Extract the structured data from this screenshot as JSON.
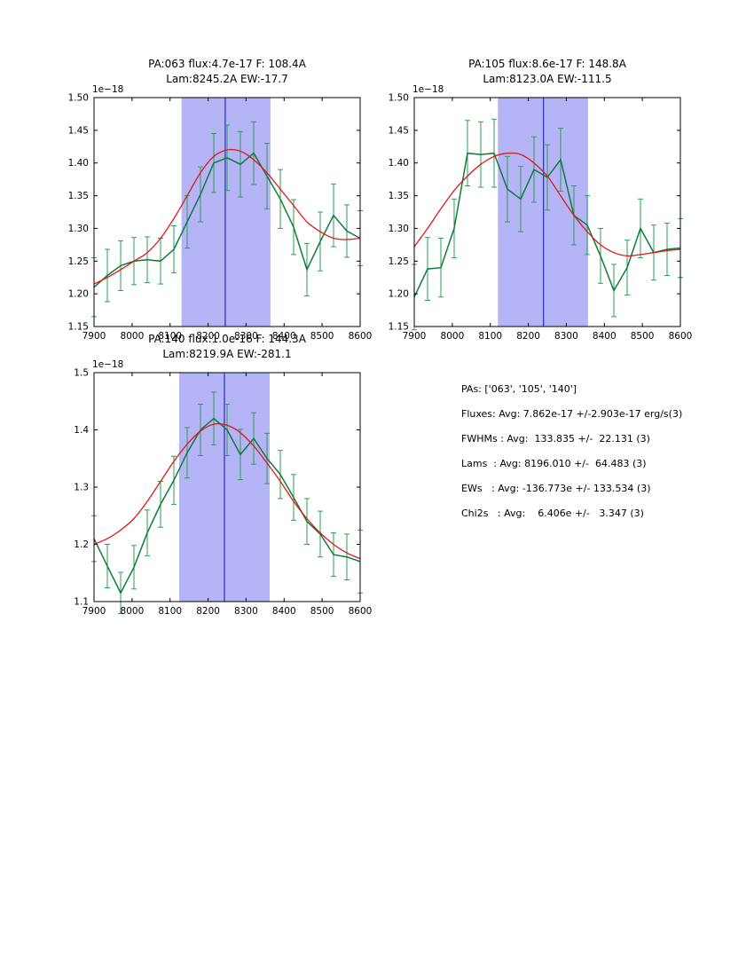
{
  "layout_note": "three spectral line-fit subplots plus stats text panel",
  "info_panel": {
    "lines": [
      "PAs: ['063', '105', '140']",
      "Fluxes: Avg: 7.862e-17 +/-2.903e-17 erg/s(3)",
      "FWHMs : Avg:  133.835 +/-  22.131 (3)",
      "Lams  : Avg: 8196.010 +/-  64.483 (3)",
      "EWs   : Avg: -136.773e +/- 133.534 (3)",
      "Chi2s   : Avg:    6.406e +/-   3.347 (3)"
    ]
  },
  "colors": {
    "data_line": "#0e7a3e",
    "error_bar": "#2f9e54",
    "fit_line": "#e01818",
    "band": "#b4b4f7",
    "vline": "#2929b8",
    "axis": "#000000"
  },
  "chart_data": [
    {
      "type": "line",
      "title_line1": "PA:063 flux:4.7e-17 F: 108.4A",
      "title_line2": "Lam:8245.2A EW:-17.7",
      "offset_label": "1e−18",
      "xlim": [
        7900,
        8600
      ],
      "ylim": [
        1.15,
        1.5
      ],
      "xticks": [
        7900,
        8000,
        8100,
        8200,
        8300,
        8400,
        8500,
        8600
      ],
      "yticks": [
        1.15,
        1.2,
        1.25,
        1.3,
        1.35,
        1.4,
        1.45,
        1.5
      ],
      "ytick_labels": [
        "1.15",
        "1.20",
        "1.25",
        "1.30",
        "1.35",
        "1.40",
        "1.45",
        "1.50"
      ],
      "band": {
        "x0": 8130,
        "x1": 8364
      },
      "vline": {
        "x": 8245
      },
      "x": [
        7900,
        7935,
        7970,
        8005,
        8040,
        8075,
        8110,
        8145,
        8180,
        8215,
        8250,
        8285,
        8320,
        8355,
        8390,
        8425,
        8460,
        8495,
        8530,
        8565,
        8600
      ],
      "series": [
        {
          "name": "spectrum",
          "values": [
            1.21,
            1.228,
            1.243,
            1.25,
            1.252,
            1.25,
            1.268,
            1.31,
            1.352,
            1.4,
            1.408,
            1.398,
            1.415,
            1.38,
            1.345,
            1.302,
            1.237,
            1.28,
            1.32,
            1.296,
            1.285
          ],
          "errors": [
            0.045,
            0.04,
            0.038,
            0.036,
            0.035,
            0.035,
            0.036,
            0.04,
            0.042,
            0.045,
            0.05,
            0.05,
            0.048,
            0.05,
            0.045,
            0.042,
            0.04,
            0.045,
            0.048,
            0.04,
            0.042
          ]
        },
        {
          "name": "gaussian-fit",
          "values": [
            1.215,
            1.225,
            1.237,
            1.25,
            1.263,
            1.285,
            1.315,
            1.35,
            1.385,
            1.41,
            1.42,
            1.418,
            1.405,
            1.385,
            1.36,
            1.335,
            1.31,
            1.295,
            1.285,
            1.283,
            1.285
          ]
        }
      ]
    },
    {
      "type": "line",
      "title_line1": "PA:105 flux:8.6e-17 F: 148.8A",
      "title_line2": "Lam:8123.0A EW:-111.5",
      "offset_label": "1e−18",
      "xlim": [
        7900,
        8600
      ],
      "ylim": [
        1.15,
        1.5
      ],
      "xticks": [
        7900,
        8000,
        8100,
        8200,
        8300,
        8400,
        8500,
        8600
      ],
      "yticks": [
        1.15,
        1.2,
        1.25,
        1.3,
        1.35,
        1.4,
        1.45,
        1.5
      ],
      "ytick_labels": [
        "1.15",
        "1.20",
        "1.25",
        "1.30",
        "1.35",
        "1.40",
        "1.45",
        "1.50"
      ],
      "band": {
        "x0": 8120,
        "x1": 8357
      },
      "vline": {
        "x": 8240
      },
      "x": [
        7900,
        7935,
        7970,
        8005,
        8040,
        8075,
        8110,
        8145,
        8180,
        8215,
        8250,
        8285,
        8320,
        8355,
        8390,
        8425,
        8460,
        8495,
        8530,
        8565,
        8600
      ],
      "series": [
        {
          "name": "spectrum",
          "values": [
            1.195,
            1.238,
            1.24,
            1.3,
            1.415,
            1.413,
            1.415,
            1.36,
            1.345,
            1.39,
            1.378,
            1.405,
            1.32,
            1.305,
            1.258,
            1.205,
            1.24,
            1.3,
            1.263,
            1.268,
            1.27
          ],
          "errors": [
            0.05,
            0.048,
            0.045,
            0.045,
            0.05,
            0.05,
            0.052,
            0.05,
            0.05,
            0.05,
            0.05,
            0.048,
            0.045,
            0.045,
            0.042,
            0.04,
            0.042,
            0.045,
            0.042,
            0.04,
            0.045
          ]
        },
        {
          "name": "gaussian-fit",
          "values": [
            1.272,
            1.3,
            1.33,
            1.358,
            1.38,
            1.398,
            1.41,
            1.415,
            1.413,
            1.4,
            1.38,
            1.35,
            1.32,
            1.295,
            1.275,
            1.263,
            1.258,
            1.26,
            1.263,
            1.266,
            1.268
          ]
        }
      ]
    },
    {
      "type": "line",
      "title_line1": "PA:140 flux:1.0e-16 F: 144.3A",
      "title_line2": "Lam:8219.9A EW:-281.1",
      "offset_label": "1e−18",
      "xlim": [
        7900,
        8600
      ],
      "ylim": [
        1.1,
        1.5
      ],
      "xticks": [
        7900,
        8000,
        8100,
        8200,
        8300,
        8400,
        8500,
        8600
      ],
      "yticks": [
        1.1,
        1.2,
        1.3,
        1.4,
        1.5
      ],
      "ytick_labels": [
        "1.1",
        "1.2",
        "1.3",
        "1.4",
        "1.5"
      ],
      "band": {
        "x0": 8124,
        "x1": 8362
      },
      "vline": {
        "x": 8243
      },
      "x": [
        7900,
        7935,
        7970,
        8005,
        8040,
        8075,
        8110,
        8145,
        8180,
        8215,
        8250,
        8285,
        8320,
        8355,
        8390,
        8425,
        8460,
        8495,
        8530,
        8565,
        8600
      ],
      "series": [
        {
          "name": "spectrum",
          "values": [
            1.21,
            1.162,
            1.115,
            1.16,
            1.22,
            1.27,
            1.312,
            1.36,
            1.4,
            1.42,
            1.4,
            1.357,
            1.385,
            1.35,
            1.322,
            1.282,
            1.24,
            1.218,
            1.182,
            1.178,
            1.17
          ],
          "errors": [
            0.04,
            0.038,
            0.036,
            0.038,
            0.04,
            0.04,
            0.042,
            0.044,
            0.045,
            0.046,
            0.045,
            0.044,
            0.045,
            0.044,
            0.042,
            0.04,
            0.04,
            0.04,
            0.038,
            0.04,
            0.055
          ]
        },
        {
          "name": "gaussian-fit",
          "values": [
            1.2,
            1.21,
            1.225,
            1.245,
            1.275,
            1.31,
            1.345,
            1.375,
            1.398,
            1.41,
            1.408,
            1.395,
            1.372,
            1.342,
            1.31,
            1.275,
            1.245,
            1.22,
            1.2,
            1.185,
            1.175
          ]
        }
      ]
    }
  ]
}
